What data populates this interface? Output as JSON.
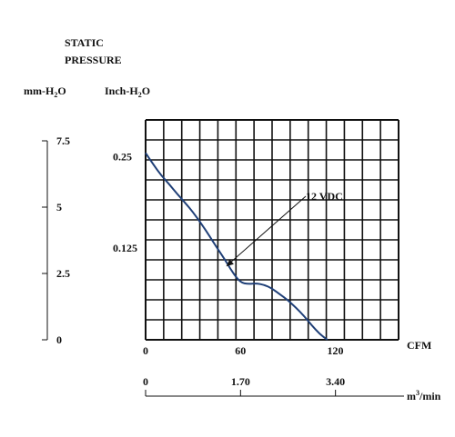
{
  "chart_data": {
    "type": "line",
    "title_line1": "STATIC",
    "title_line2": "PRESSURE",
    "unit_mm_base": "mm-H",
    "unit_mm_sub": "2",
    "unit_mm_tail": "O",
    "unit_inch_base": "Inch-H",
    "unit_inch_sub": "2",
    "unit_inch_tail": "O",
    "mm_ticks": [
      {
        "value": 7.5,
        "label": "7.5"
      },
      {
        "value": 5,
        "label": "5"
      },
      {
        "value": 2.5,
        "label": "2.5"
      },
      {
        "value": 0,
        "label": "0"
      }
    ],
    "mm_range": [
      0,
      7.5
    ],
    "inch_ticks": [
      {
        "value": 0.25,
        "label": "0.25"
      },
      {
        "value": 0.125,
        "label": "0.125"
      }
    ],
    "ylim": [
      0,
      0.3
    ],
    "xlim": [
      0,
      160
    ],
    "x_ticks": [
      {
        "value": 0,
        "label": "0"
      },
      {
        "value": 60,
        "label": "60"
      },
      {
        "value": 120,
        "label": "120"
      }
    ],
    "xlabel": "CFM",
    "m3_ticks": [
      {
        "value": 0,
        "label": "0"
      },
      {
        "value": 1.7,
        "label": "1.70"
      },
      {
        "value": 3.4,
        "label": "3.40"
      }
    ],
    "m3_range": [
      0,
      4.53
    ],
    "m3_unit_base": "m",
    "m3_unit_sup": "3",
    "m3_unit_tail": "/min",
    "grid": true,
    "grid_cols": 14,
    "grid_rows": 11,
    "series": [
      {
        "name": "12 VDC",
        "color": "#1f3f77",
        "x": [
          0,
          5,
          10,
          15,
          20,
          25,
          30,
          35,
          40,
          45,
          50,
          55,
          60,
          65,
          70,
          75,
          80,
          85,
          90,
          95,
          100,
          105,
          110,
          115
        ],
        "y": [
          0.255,
          0.239,
          0.224,
          0.212,
          0.199,
          0.187,
          0.174,
          0.159,
          0.143,
          0.126,
          0.11,
          0.092,
          0.078,
          0.076,
          0.077,
          0.075,
          0.07,
          0.062,
          0.054,
          0.044,
          0.033,
          0.02,
          0.008,
          0.0
        ]
      }
    ],
    "annotation": {
      "text": "12 VDC",
      "x": 51,
      "y": 0.1
    }
  }
}
